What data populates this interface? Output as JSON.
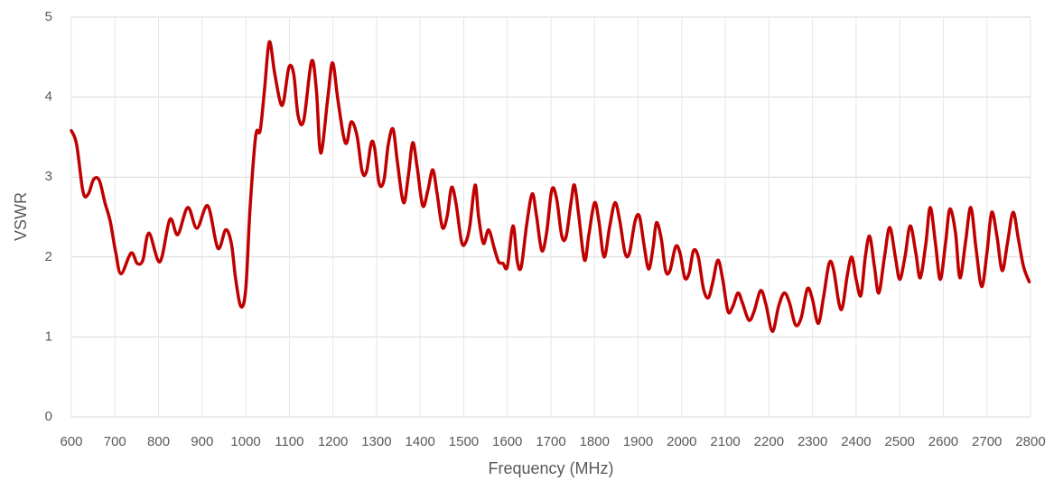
{
  "chart_data": {
    "type": "line",
    "x_label": "Frequency (MHz)",
    "y_label": "VSWR",
    "color": "#c00000",
    "grid": true,
    "xlim": [
      600,
      2800
    ],
    "xticks": [
      600,
      700,
      800,
      900,
      1000,
      1100,
      1200,
      1300,
      1400,
      1500,
      1600,
      1700,
      1800,
      1900,
      2000,
      2100,
      2200,
      2300,
      2400,
      2500,
      2600,
      2700,
      2800
    ],
    "ylim": [
      0,
      5
    ],
    "yticks": [
      0,
      1,
      2,
      3,
      4,
      5
    ],
    "x": [
      600,
      612,
      627,
      639,
      651,
      664,
      677,
      689,
      702,
      714,
      737,
      751,
      764,
      778,
      803,
      826,
      844,
      867,
      888,
      913,
      936,
      954,
      967,
      977,
      989,
      1000,
      1010,
      1023,
      1033,
      1043,
      1054,
      1066,
      1079,
      1087,
      1099,
      1110,
      1120,
      1133,
      1151,
      1162,
      1172,
      1188,
      1199,
      1211,
      1224,
      1232,
      1242,
      1255,
      1267,
      1277,
      1288,
      1296,
      1306,
      1317,
      1327,
      1338,
      1348,
      1362,
      1373,
      1383,
      1393,
      1406,
      1418,
      1429,
      1439,
      1451,
      1462,
      1472,
      1482,
      1495,
      1505,
      1514,
      1526,
      1534,
      1545,
      1557,
      1570,
      1580,
      1590,
      1600,
      1613,
      1623,
      1632,
      1644,
      1657,
      1667,
      1679,
      1690,
      1702,
      1713,
      1725,
      1735,
      1746,
      1754,
      1764,
      1777,
      1787,
      1800,
      1810,
      1822,
      1835,
      1847,
      1858,
      1870,
      1880,
      1893,
      1903,
      1913,
      1924,
      1934,
      1942,
      1953,
      1963,
      1973,
      1986,
      1996,
      2007,
      2017,
      2027,
      2038,
      2050,
      2061,
      2071,
      2083,
      2094,
      2106,
      2117,
      2129,
      2139,
      2154,
      2166,
      2181,
      2193,
      2208,
      2222,
      2235,
      2247,
      2261,
      2274,
      2288,
      2299,
      2313,
      2325,
      2338,
      2348,
      2361,
      2369,
      2380,
      2390,
      2400,
      2411,
      2421,
      2431,
      2442,
      2452,
      2465,
      2477,
      2490,
      2500,
      2512,
      2524,
      2537,
      2547,
      2560,
      2570,
      2582,
      2593,
      2605,
      2615,
      2628,
      2638,
      2651,
      2663,
      2675,
      2688,
      2700,
      2711,
      2723,
      2735,
      2747,
      2760,
      2772,
      2784,
      2797
    ],
    "values": [
      3.58,
      3.41,
      2.81,
      2.79,
      2.97,
      2.96,
      2.68,
      2.45,
      2.05,
      1.79,
      2.05,
      1.92,
      1.96,
      2.3,
      1.94,
      2.47,
      2.28,
      2.62,
      2.36,
      2.64,
      2.11,
      2.34,
      2.17,
      1.72,
      1.38,
      1.6,
      2.62,
      3.52,
      3.58,
      4.09,
      4.69,
      4.31,
      3.94,
      3.95,
      4.37,
      4.29,
      3.77,
      3.71,
      4.45,
      4.09,
      3.3,
      3.98,
      4.43,
      3.98,
      3.52,
      3.43,
      3.69,
      3.52,
      3.07,
      3.07,
      3.43,
      3.35,
      2.92,
      2.96,
      3.41,
      3.6,
      3.18,
      2.68,
      3.02,
      3.43,
      3.13,
      2.64,
      2.84,
      3.09,
      2.79,
      2.37,
      2.51,
      2.87,
      2.68,
      2.19,
      2.19,
      2.39,
      2.9,
      2.51,
      2.17,
      2.34,
      2.11,
      1.94,
      1.92,
      1.88,
      2.39,
      1.94,
      1.88,
      2.39,
      2.79,
      2.51,
      2.08,
      2.3,
      2.84,
      2.73,
      2.26,
      2.26,
      2.68,
      2.9,
      2.51,
      1.96,
      2.28,
      2.68,
      2.45,
      2.0,
      2.39,
      2.68,
      2.45,
      2.05,
      2.05,
      2.45,
      2.51,
      2.17,
      1.85,
      2.11,
      2.43,
      2.23,
      1.83,
      1.83,
      2.13,
      2.05,
      1.74,
      1.8,
      2.08,
      2.0,
      1.6,
      1.49,
      1.68,
      1.96,
      1.72,
      1.32,
      1.38,
      1.55,
      1.43,
      1.21,
      1.32,
      1.58,
      1.41,
      1.07,
      1.38,
      1.55,
      1.43,
      1.15,
      1.24,
      1.6,
      1.49,
      1.17,
      1.49,
      1.92,
      1.85,
      1.41,
      1.38,
      1.78,
      2.0,
      1.72,
      1.52,
      2.0,
      2.26,
      1.88,
      1.55,
      2.0,
      2.37,
      2.0,
      1.72,
      2.0,
      2.39,
      2.05,
      1.74,
      2.17,
      2.62,
      2.17,
      1.72,
      2.17,
      2.6,
      2.3,
      1.74,
      2.19,
      2.62,
      2.11,
      1.63,
      2.05,
      2.56,
      2.26,
      1.83,
      2.17,
      2.56,
      2.23,
      1.88,
      1.69
    ]
  }
}
